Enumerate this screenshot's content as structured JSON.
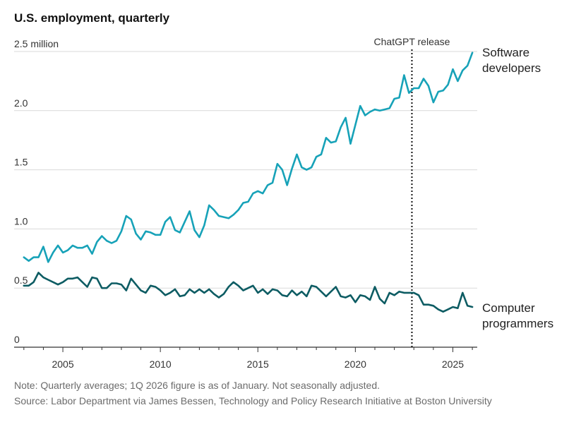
{
  "title": "U.S. employment, quarterly",
  "note": "Note: Quarterly averages; 1Q 2026 figure is as of January. Not seasonally adjusted.",
  "source": "Source: Labor Department via James Bessen, Technology and Policy Research Initiative at Boston University",
  "colors": {
    "software": "#17a2b8",
    "programmers": "#0d5c63",
    "grid": "#d9d9d9",
    "axis": "#333333"
  },
  "chart_data": {
    "type": "line",
    "title": "U.S. employment, quarterly",
    "xlim": [
      2002.5,
      2026.25
    ],
    "ylim": [
      0,
      2.5
    ],
    "y_ticks": [
      {
        "value": 0,
        "label": "0"
      },
      {
        "value": 0.5,
        "label": "0.5"
      },
      {
        "value": 1.0,
        "label": "1.0"
      },
      {
        "value": 1.5,
        "label": "1.5"
      },
      {
        "value": 2.0,
        "label": "2.0"
      },
      {
        "value": 2.5,
        "label": "2.5 million"
      }
    ],
    "x_ticks": [
      {
        "value": 2005,
        "label": "2005"
      },
      {
        "value": 2010,
        "label": "2010"
      },
      {
        "value": 2015,
        "label": "2015"
      },
      {
        "value": 2020,
        "label": "2020"
      },
      {
        "value": 2025,
        "label": "2025"
      }
    ],
    "annotation": {
      "x": 2022.9,
      "label": "ChatGPT release"
    },
    "series": [
      {
        "name": "Software developers",
        "label_lines": [
          "Software",
          "developers"
        ],
        "color": "#17a2b8",
        "x": [
          2003.0,
          2003.25,
          2003.5,
          2003.75,
          2004.0,
          2004.25,
          2004.5,
          2004.75,
          2005.0,
          2005.25,
          2005.5,
          2005.75,
          2006.0,
          2006.25,
          2006.5,
          2006.75,
          2007.0,
          2007.25,
          2007.5,
          2007.75,
          2008.0,
          2008.25,
          2008.5,
          2008.75,
          2009.0,
          2009.25,
          2009.5,
          2009.75,
          2010.0,
          2010.25,
          2010.5,
          2010.75,
          2011.0,
          2011.25,
          2011.5,
          2011.75,
          2012.0,
          2012.25,
          2012.5,
          2012.75,
          2013.0,
          2013.25,
          2013.5,
          2013.75,
          2014.0,
          2014.25,
          2014.5,
          2014.75,
          2015.0,
          2015.25,
          2015.5,
          2015.75,
          2016.0,
          2016.25,
          2016.5,
          2016.75,
          2017.0,
          2017.25,
          2017.5,
          2017.75,
          2018.0,
          2018.25,
          2018.5,
          2018.75,
          2019.0,
          2019.25,
          2019.5,
          2019.75,
          2020.0,
          2020.25,
          2020.5,
          2020.75,
          2021.0,
          2021.25,
          2021.5,
          2021.75,
          2022.0,
          2022.25,
          2022.5,
          2022.75,
          2023.0,
          2023.25,
          2023.5,
          2023.75,
          2024.0,
          2024.25,
          2024.5,
          2024.75,
          2025.0,
          2025.25,
          2025.5,
          2025.75,
          2026.0
        ],
        "values": [
          0.76,
          0.73,
          0.76,
          0.76,
          0.85,
          0.72,
          0.8,
          0.86,
          0.8,
          0.82,
          0.86,
          0.84,
          0.84,
          0.86,
          0.79,
          0.89,
          0.94,
          0.9,
          0.88,
          0.9,
          0.98,
          1.11,
          1.08,
          0.96,
          0.91,
          0.98,
          0.97,
          0.95,
          0.95,
          1.06,
          1.1,
          0.99,
          0.97,
          1.06,
          1.15,
          0.99,
          0.93,
          1.03,
          1.2,
          1.16,
          1.11,
          1.1,
          1.09,
          1.12,
          1.16,
          1.22,
          1.23,
          1.3,
          1.32,
          1.3,
          1.37,
          1.39,
          1.55,
          1.5,
          1.37,
          1.51,
          1.63,
          1.52,
          1.5,
          1.52,
          1.61,
          1.63,
          1.77,
          1.73,
          1.74,
          1.86,
          1.94,
          1.72,
          1.88,
          2.04,
          1.96,
          1.99,
          2.01,
          2.0,
          2.01,
          2.02,
          2.1,
          2.11,
          2.3,
          2.15,
          2.19,
          2.19,
          2.27,
          2.21,
          2.07,
          2.16,
          2.17,
          2.22,
          2.35,
          2.25,
          2.34,
          2.38,
          2.49
        ]
      },
      {
        "name": "Computer programmers",
        "label_lines": [
          "Computer",
          "programmers"
        ],
        "color": "#0d5c63",
        "x": [
          2003.0,
          2003.25,
          2003.5,
          2003.75,
          2004.0,
          2004.25,
          2004.5,
          2004.75,
          2005.0,
          2005.25,
          2005.5,
          2005.75,
          2006.0,
          2006.25,
          2006.5,
          2006.75,
          2007.0,
          2007.25,
          2007.5,
          2007.75,
          2008.0,
          2008.25,
          2008.5,
          2008.75,
          2009.0,
          2009.25,
          2009.5,
          2009.75,
          2010.0,
          2010.25,
          2010.5,
          2010.75,
          2011.0,
          2011.25,
          2011.5,
          2011.75,
          2012.0,
          2012.25,
          2012.5,
          2012.75,
          2013.0,
          2013.25,
          2013.5,
          2013.75,
          2014.0,
          2014.25,
          2014.5,
          2014.75,
          2015.0,
          2015.25,
          2015.5,
          2015.75,
          2016.0,
          2016.25,
          2016.5,
          2016.75,
          2017.0,
          2017.25,
          2017.5,
          2017.75,
          2018.0,
          2018.25,
          2018.5,
          2018.75,
          2019.0,
          2019.25,
          2019.5,
          2019.75,
          2020.0,
          2020.25,
          2020.5,
          2020.75,
          2021.0,
          2021.25,
          2021.5,
          2021.75,
          2022.0,
          2022.25,
          2022.5,
          2022.75,
          2023.0,
          2023.25,
          2023.5,
          2023.75,
          2024.0,
          2024.25,
          2024.5,
          2024.75,
          2025.0,
          2025.25,
          2025.5,
          2025.75,
          2026.0
        ],
        "values": [
          0.52,
          0.52,
          0.55,
          0.63,
          0.59,
          0.57,
          0.55,
          0.53,
          0.55,
          0.58,
          0.58,
          0.59,
          0.55,
          0.51,
          0.59,
          0.58,
          0.5,
          0.5,
          0.54,
          0.54,
          0.53,
          0.48,
          0.58,
          0.53,
          0.48,
          0.46,
          0.52,
          0.51,
          0.48,
          0.44,
          0.46,
          0.49,
          0.43,
          0.44,
          0.49,
          0.46,
          0.49,
          0.46,
          0.49,
          0.45,
          0.42,
          0.45,
          0.51,
          0.55,
          0.52,
          0.48,
          0.5,
          0.52,
          0.46,
          0.49,
          0.45,
          0.49,
          0.48,
          0.44,
          0.43,
          0.48,
          0.44,
          0.47,
          0.43,
          0.52,
          0.51,
          0.47,
          0.43,
          0.47,
          0.51,
          0.43,
          0.42,
          0.44,
          0.38,
          0.44,
          0.43,
          0.4,
          0.51,
          0.41,
          0.37,
          0.46,
          0.44,
          0.47,
          0.46,
          0.46,
          0.46,
          0.44,
          0.36,
          0.36,
          0.35,
          0.32,
          0.3,
          0.32,
          0.34,
          0.33,
          0.46,
          0.35,
          0.34
        ]
      }
    ]
  }
}
